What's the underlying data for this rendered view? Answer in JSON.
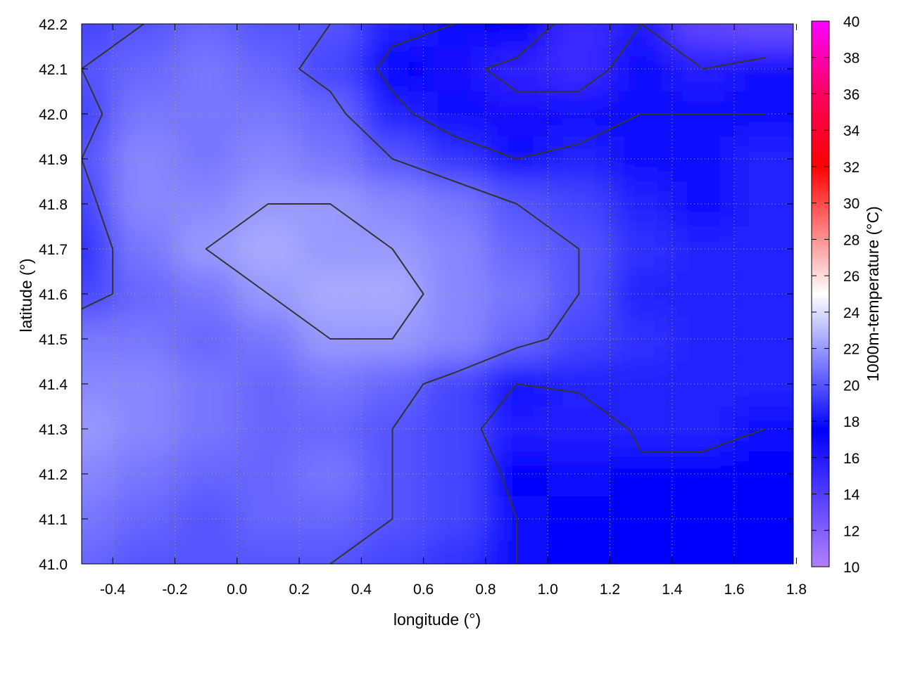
{
  "chart_data": {
    "type": "heatmap",
    "xlabel": "longitude (°)",
    "ylabel": "latitude (°)",
    "cblabel": "1000m-temperature (°C)",
    "xlim": [
      -0.5,
      1.79
    ],
    "ylim": [
      41.0,
      42.2
    ],
    "clim": [
      10,
      40
    ],
    "grid": true,
    "contours": true,
    "contour_levels": [
      16,
      18,
      20,
      22
    ],
    "xticks": [
      "-0.4",
      "-0.2",
      "0.0",
      "0.2",
      "0.4",
      "0.6",
      "0.8",
      "1.0",
      "1.2",
      "1.4",
      "1.6",
      "1.8"
    ],
    "yticks": [
      "41.0",
      "41.1",
      "41.2",
      "41.3",
      "41.4",
      "41.5",
      "41.6",
      "41.7",
      "41.8",
      "41.9",
      "42.0",
      "42.1",
      "42.2"
    ],
    "cbticks": [
      "10",
      "12",
      "14",
      "16",
      "18",
      "20",
      "22",
      "24",
      "26",
      "28",
      "30",
      "32",
      "34",
      "36",
      "38",
      "40"
    ],
    "palette": [
      {
        "value": 10,
        "color": "#b080ff"
      },
      {
        "value": 17.5,
        "color": "#0000ff"
      },
      {
        "value": 25,
        "color": "#ffffff"
      },
      {
        "value": 32,
        "color": "#ff0000"
      },
      {
        "value": 36,
        "color": "#ff0060"
      },
      {
        "value": 40,
        "color": "#ff00ff"
      }
    ],
    "grid_lon": [
      -0.5,
      -0.3,
      -0.1,
      0.1,
      0.3,
      0.5,
      0.7,
      0.9,
      1.1,
      1.3,
      1.5,
      1.7
    ],
    "grid_lat": [
      42.2,
      42.1,
      42.0,
      41.9,
      41.8,
      41.7,
      41.6,
      41.5,
      41.4,
      41.3,
      41.2,
      41.1,
      41.0
    ],
    "values": [
      [
        19.5,
        20,
        20.5,
        20,
        20,
        18.5,
        18,
        17.5,
        15,
        16,
        13.5,
        13
      ],
      [
        20,
        20.5,
        21,
        20.5,
        19.5,
        17.5,
        16.5,
        15.5,
        15,
        17,
        16,
        17
      ],
      [
        19.5,
        21,
        21,
        21,
        20.5,
        18.5,
        17,
        16.5,
        17,
        18,
        18,
        18
      ],
      [
        20,
        21.5,
        21,
        21.5,
        21,
        20,
        19,
        18,
        18.5,
        18,
        18,
        18.5
      ],
      [
        19.5,
        21.5,
        21.5,
        22,
        22,
        21.5,
        21,
        20,
        19.5,
        18.5,
        18,
        18.5
      ],
      [
        19,
        21,
        22,
        22.5,
        22,
        22,
        21.5,
        20.5,
        20,
        19,
        18.5,
        18.5
      ],
      [
        19.5,
        20.5,
        21,
        22,
        22.5,
        22.5,
        21.5,
        21,
        20,
        18.5,
        18.5,
        18.5
      ],
      [
        21,
        21,
        20.5,
        21,
        22,
        22,
        21.5,
        20.5,
        19.5,
        19,
        18.5,
        18.5
      ],
      [
        21.5,
        21.5,
        21,
        20.5,
        21,
        20.5,
        19.5,
        18,
        18.5,
        18.5,
        18.5,
        18.5
      ],
      [
        22,
        21.5,
        21,
        20.5,
        20.5,
        20,
        19.5,
        16,
        16,
        18.5,
        18.5,
        18
      ],
      [
        21.5,
        21,
        20.5,
        20.5,
        21,
        20,
        19.5,
        17.5,
        17,
        17.5,
        17.5,
        17.5
      ],
      [
        21,
        20.5,
        20,
        20.5,
        20.5,
        20,
        19.5,
        18,
        17.5,
        17.5,
        17.5,
        17.5
      ],
      [
        20.5,
        20,
        20,
        20,
        20,
        19.5,
        19,
        18,
        17.5,
        17.5,
        17.5,
        17.5
      ]
    ]
  }
}
